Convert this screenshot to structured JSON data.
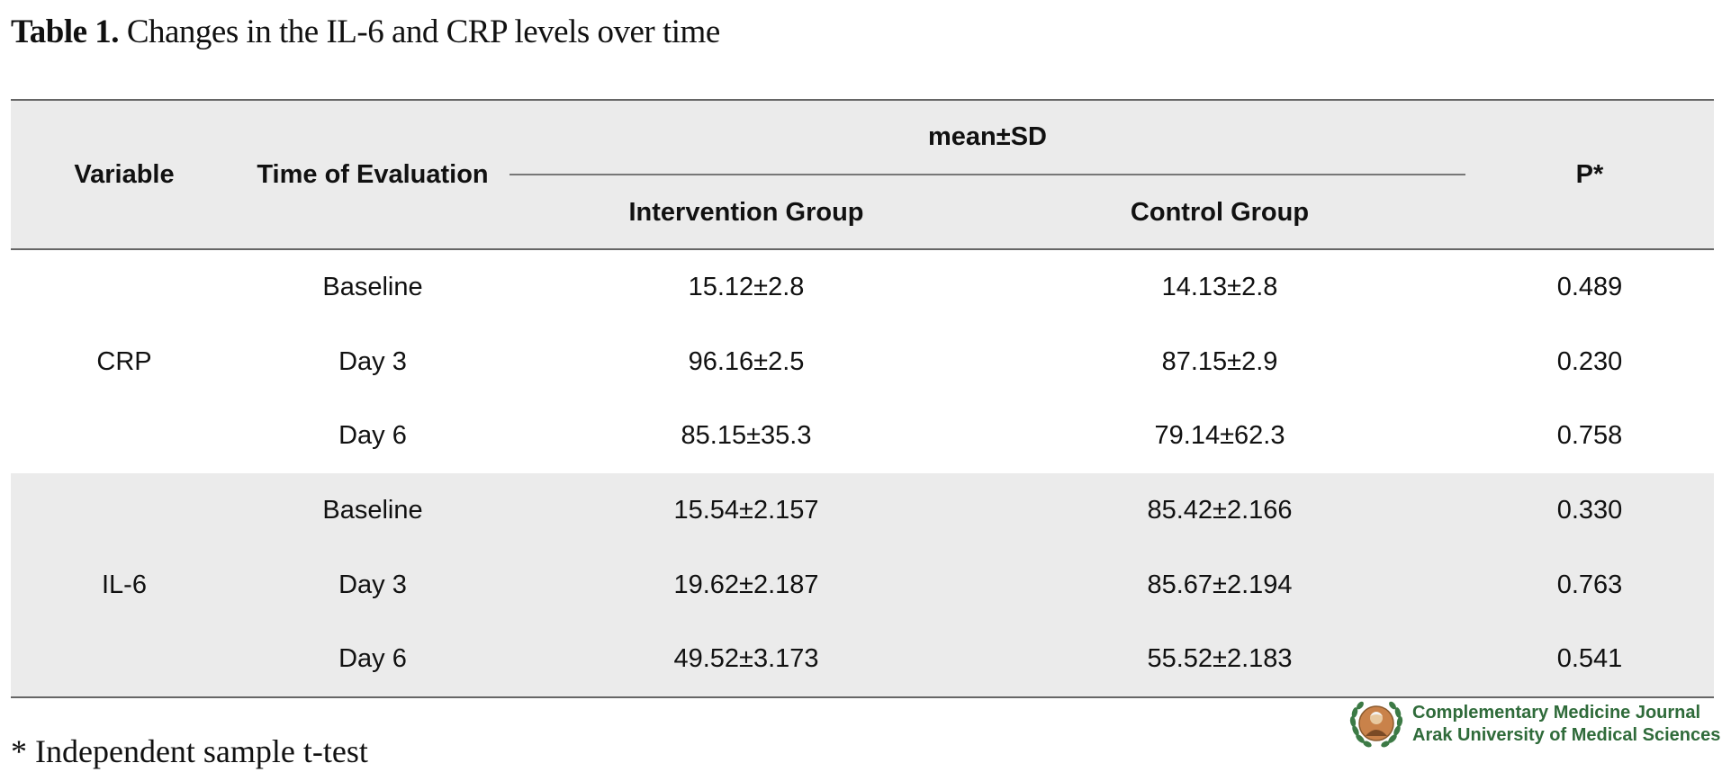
{
  "caption": {
    "number": "Table 1.",
    "title": "Changes in the IL-6 and CRP levels over time"
  },
  "table": {
    "headers": {
      "variable": "Variable",
      "time": "Time of Evaluation",
      "group_span": "mean±SD",
      "intervention": "Intervention Group",
      "control": "Control Group",
      "p": "P*"
    },
    "groups": [
      {
        "variable": "CRP",
        "rows": [
          {
            "time": "Baseline",
            "intervention": "15.12±2.8",
            "control": "14.13±2.8",
            "p": "0.489"
          },
          {
            "time": "Day 3",
            "intervention": "96.16±2.5",
            "control": "87.15±2.9",
            "p": "0.230"
          },
          {
            "time": "Day 6",
            "intervention": "85.15±35.3",
            "control": "79.14±62.3",
            "p": "0.758"
          }
        ]
      },
      {
        "variable": "IL-6",
        "rows": [
          {
            "time": "Baseline",
            "intervention": "15.54±2.157",
            "control": "85.42±2.166",
            "p": "0.330"
          },
          {
            "time": "Day 3",
            "intervention": "19.62±2.187",
            "control": "85.67±2.194",
            "p": "0.763"
          },
          {
            "time": "Day 6",
            "intervention": "49.52±3.173",
            "control": "55.52±2.183",
            "p": "0.541"
          }
        ]
      }
    ]
  },
  "footnote": "* Independent sample t-test",
  "logo": {
    "line1": "Complementary Medicine Journal",
    "line2": "Arak University of Medical Sciences",
    "icon": "laurel-portrait-emblem-icon",
    "color": "#2f6b3a"
  }
}
